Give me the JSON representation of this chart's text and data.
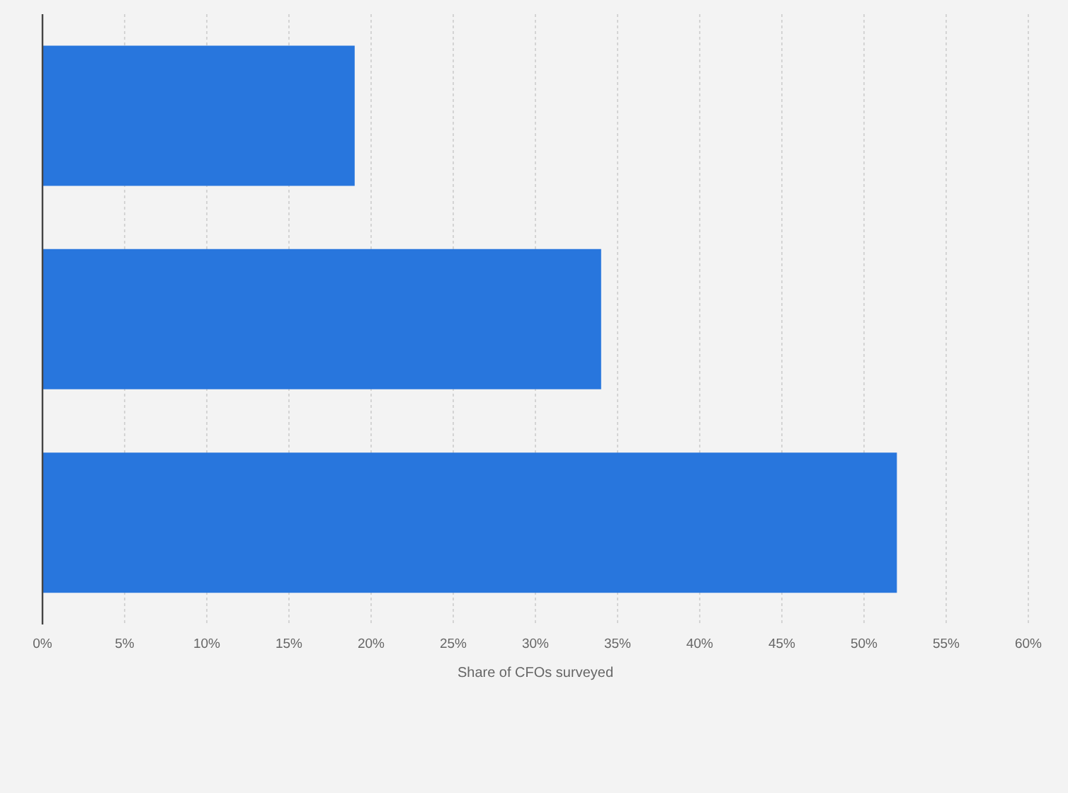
{
  "chart_data": {
    "type": "bar",
    "orientation": "horizontal",
    "categories": [
      null,
      null,
      null
    ],
    "values": [
      19,
      34,
      52
    ],
    "color": "#2876dd",
    "xlabel": "Share of CFOs surveyed",
    "xlim": [
      0,
      60
    ],
    "xticks": [
      {
        "value": 0,
        "label": "0%"
      },
      {
        "value": 5,
        "label": "5%"
      },
      {
        "value": 10,
        "label": "10%"
      },
      {
        "value": 15,
        "label": "15%"
      },
      {
        "value": 20,
        "label": "20%"
      },
      {
        "value": 25,
        "label": "25%"
      },
      {
        "value": 30,
        "label": "30%"
      },
      {
        "value": 35,
        "label": "35%"
      },
      {
        "value": 40,
        "label": "40%"
      },
      {
        "value": 45,
        "label": "45%"
      },
      {
        "value": 50,
        "label": "50%"
      },
      {
        "value": 55,
        "label": "55%"
      },
      {
        "value": 60,
        "label": "60%"
      }
    ],
    "grid": "x"
  }
}
